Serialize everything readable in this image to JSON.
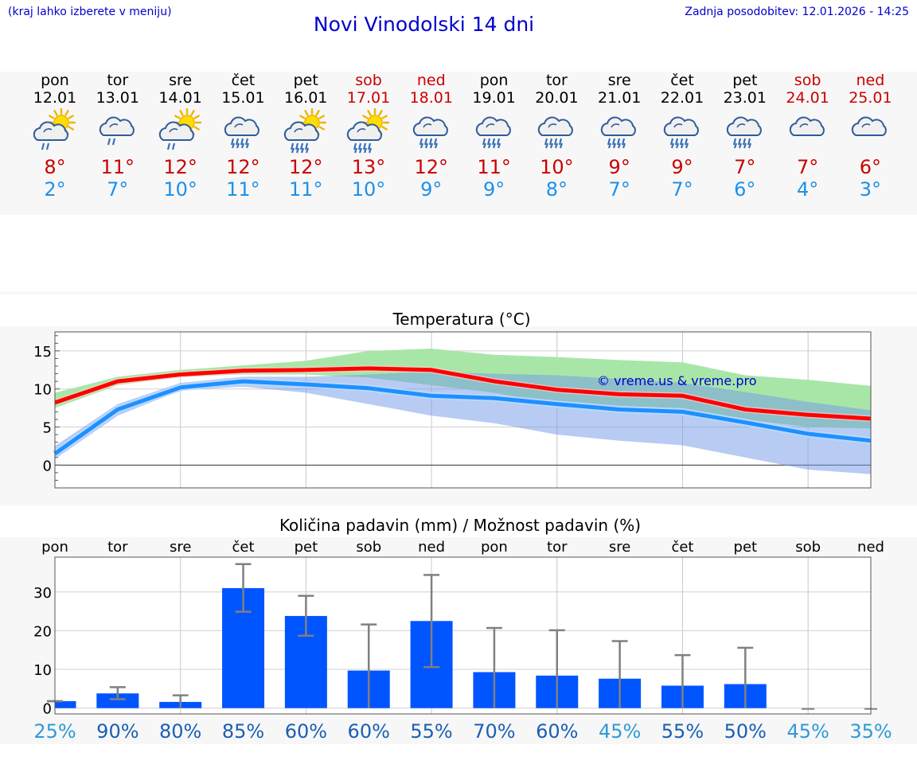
{
  "header": {
    "hint": "(kraj lahko izberete v meniju)",
    "title": "Novi Vinodolski 14 dni",
    "updated": "Zadnja posodobitev: 12.01.2026 - 14:25"
  },
  "days": [
    {
      "name": "pon",
      "date": "12.01",
      "icon": "sun-cloud-rain-icon",
      "tmax": "8°",
      "tmin": "2°",
      "weekend": false
    },
    {
      "name": "tor",
      "date": "13.01",
      "icon": "cloud-rain-icon",
      "tmax": "11°",
      "tmin": "7°",
      "weekend": false
    },
    {
      "name": "sre",
      "date": "14.01",
      "icon": "sun-cloud-rain-icon",
      "tmax": "12°",
      "tmin": "10°",
      "weekend": false
    },
    {
      "name": "čet",
      "date": "15.01",
      "icon": "cloud-heavy-rain-icon",
      "tmax": "12°",
      "tmin": "11°",
      "weekend": false
    },
    {
      "name": "pet",
      "date": "16.01",
      "icon": "sun-cloud-heavy-rain-icon",
      "tmax": "12°",
      "tmin": "11°",
      "weekend": false
    },
    {
      "name": "sob",
      "date": "17.01",
      "icon": "sun-cloud-heavy-rain-icon",
      "tmax": "13°",
      "tmin": "10°",
      "weekend": true
    },
    {
      "name": "ned",
      "date": "18.01",
      "icon": "cloud-heavy-rain-icon",
      "tmax": "12°",
      "tmin": "9°",
      "weekend": true
    },
    {
      "name": "pon",
      "date": "19.01",
      "icon": "cloud-heavy-rain-icon",
      "tmax": "11°",
      "tmin": "9°",
      "weekend": false
    },
    {
      "name": "tor",
      "date": "20.01",
      "icon": "cloud-heavy-rain-icon",
      "tmax": "10°",
      "tmin": "8°",
      "weekend": false
    },
    {
      "name": "sre",
      "date": "21.01",
      "icon": "cloud-heavy-rain-icon",
      "tmax": "9°",
      "tmin": "7°",
      "weekend": false
    },
    {
      "name": "čet",
      "date": "22.01",
      "icon": "cloud-heavy-rain-icon",
      "tmax": "9°",
      "tmin": "7°",
      "weekend": false
    },
    {
      "name": "pet",
      "date": "23.01",
      "icon": "cloud-heavy-rain-icon",
      "tmax": "7°",
      "tmin": "6°",
      "weekend": false
    },
    {
      "name": "sob",
      "date": "24.01",
      "icon": "cloud-icon",
      "tmax": "7°",
      "tmin": "4°",
      "weekend": true
    },
    {
      "name": "ned",
      "date": "25.01",
      "icon": "cloud-icon",
      "tmax": "6°",
      "tmin": "3°",
      "weekend": true
    }
  ],
  "colors": {
    "tmax": "#cc0000",
    "tmin": "#1e90e8",
    "max_band": "#a8e6a8",
    "min_band": "#a9c0f0",
    "overlap_band": "#74c49e",
    "max_line": "#ff0000",
    "min_line": "#1e90ff",
    "bar": "#0055ff",
    "error": "#808080",
    "watermark": "#0000cc"
  },
  "chart_data": [
    {
      "type": "line",
      "title": "Temperatura (°C)",
      "watermark": "© vreme.us & vreme.pro",
      "x": [
        0,
        1,
        2,
        3,
        4,
        5,
        6,
        7,
        8,
        9,
        10,
        11,
        12,
        13
      ],
      "ylim": [
        -3,
        17.5
      ],
      "yticks": [
        0,
        5,
        10,
        15
      ],
      "series": [
        {
          "name": "max",
          "values": [
            8.2,
            11.0,
            11.9,
            12.4,
            12.5,
            12.7,
            12.5,
            11.0,
            9.9,
            9.3,
            9.1,
            7.3,
            6.6,
            6.1
          ]
        },
        {
          "name": "min",
          "values": [
            1.5,
            7.3,
            10.2,
            11.0,
            10.6,
            10.1,
            9.1,
            8.8,
            8.0,
            7.3,
            7.0,
            5.6,
            4.1,
            3.2
          ]
        }
      ],
      "bands": [
        {
          "name": "max-range",
          "lower": [
            7.5,
            10.5,
            11.6,
            11.9,
            11.9,
            11.5,
            10.5,
            9.5,
            8.0,
            7.0,
            7.2,
            6.0,
            5.0,
            4.8
          ],
          "upper": [
            9.5,
            11.6,
            12.5,
            13.1,
            13.7,
            15.0,
            15.3,
            14.5,
            14.2,
            13.8,
            13.5,
            11.8,
            11.2,
            10.4
          ]
        },
        {
          "name": "min-range",
          "lower": [
            0.8,
            6.5,
            9.8,
            10.3,
            9.5,
            8.0,
            6.5,
            5.5,
            4.0,
            3.2,
            2.6,
            1.0,
            -0.6,
            -1.2
          ],
          "upper": [
            2.5,
            8.0,
            10.8,
            11.6,
            11.6,
            11.9,
            12.3,
            12.0,
            11.8,
            11.3,
            10.8,
            9.6,
            8.3,
            7.2
          ]
        }
      ]
    },
    {
      "type": "bar",
      "title": "Količina padavin (mm) / Možnost padavin (%)",
      "categories": [
        "pon",
        "tor",
        "sre",
        "čet",
        "pet",
        "sob",
        "ned",
        "pon",
        "tor",
        "sre",
        "čet",
        "pet",
        "sob",
        "ned"
      ],
      "values": [
        1.8,
        3.8,
        1.6,
        31,
        23.8,
        9.7,
        22.5,
        9.3,
        8.4,
        7.6,
        5.8,
        6.2,
        0,
        0
      ],
      "error_low": [
        1.8,
        2.3,
        0.0,
        24.9,
        18.7,
        0,
        10.6,
        0,
        0,
        0,
        0,
        0,
        0,
        0
      ],
      "error_high": [
        1.8,
        5.4,
        3.3,
        37.2,
        29.0,
        21.6,
        34.4,
        20.7,
        20.1,
        17.3,
        13.7,
        15.6,
        0,
        0
      ],
      "ylim": [
        -1.5,
        39
      ],
      "yticks": [
        0,
        10,
        20,
        30
      ],
      "probability": [
        "25%",
        "90%",
        "80%",
        "85%",
        "60%",
        "60%",
        "55%",
        "70%",
        "60%",
        "45%",
        "55%",
        "50%",
        "45%",
        "35%"
      ],
      "probability_colors": [
        "#2e9ad8",
        "#1a5fb4",
        "#1a5fb4",
        "#1a5fb4",
        "#1a5fb4",
        "#1a5fb4",
        "#1a5fb4",
        "#1a5fb4",
        "#1a5fb4",
        "#2e9ad8",
        "#1a5fb4",
        "#1a5fb4",
        "#2e9ad8",
        "#2e9ad8"
      ]
    }
  ]
}
